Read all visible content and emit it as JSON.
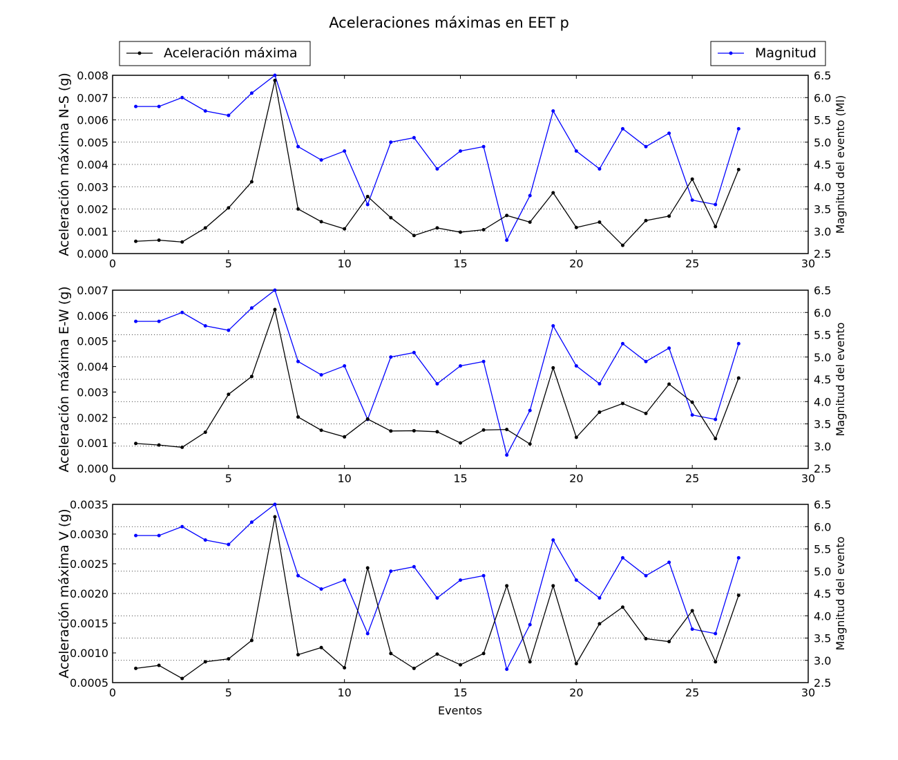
{
  "chart_data": {
    "type": "line",
    "title": "Aceleraciones máximas en EET p",
    "xlabel": "Eventos",
    "legend": {
      "left": {
        "label": "Aceleración máxima",
        "color": "#000000",
        "placement": "top-left"
      },
      "right": {
        "label": "Magnitud",
        "color": "#0000ff",
        "placement": "top-right"
      }
    },
    "x": [
      1,
      2,
      3,
      4,
      5,
      6,
      7,
      8,
      9,
      10,
      11,
      12,
      13,
      14,
      15,
      16,
      17,
      18,
      19,
      20,
      21,
      22,
      23,
      24,
      25,
      26,
      27
    ],
    "xlim": [
      0,
      30
    ],
    "xticks": [
      0,
      5,
      10,
      15,
      20,
      25,
      30
    ],
    "magnitude": [
      5.8,
      5.8,
      6.0,
      5.7,
      5.6,
      6.1,
      6.5,
      4.9,
      4.6,
      4.8,
      3.6,
      5.0,
      5.1,
      4.4,
      4.8,
      4.9,
      2.8,
      3.8,
      5.7,
      4.8,
      4.4,
      5.3,
      4.9,
      5.2,
      3.7,
      3.6,
      5.3
    ],
    "panels": [
      {
        "ylabel_left": "Aceleración máxima N-S (g)",
        "ylabel_right": "Magnitud del evento (Ml)",
        "ylim_left": [
          0,
          0.008
        ],
        "yticks_left": [
          "0.000",
          "0.001",
          "0.002",
          "0.003",
          "0.004",
          "0.005",
          "0.006",
          "0.007",
          "0.008"
        ],
        "ylim_right": [
          2.5,
          6.5
        ],
        "yticks_right": [
          "2.5",
          "3.0",
          "3.5",
          "4.0",
          "4.5",
          "5.0",
          "5.5",
          "6.0",
          "6.5"
        ],
        "series": [
          {
            "name": "Aceleración máxima",
            "color": "#000000",
            "values": [
              0.00055,
              0.0006,
              0.00052,
              0.00115,
              0.00205,
              0.00322,
              0.00777,
              0.002,
              0.00143,
              0.00111,
              0.00256,
              0.00161,
              0.00081,
              0.00115,
              0.00096,
              0.00107,
              0.00171,
              0.00141,
              0.00273,
              0.00117,
              0.00141,
              0.00037,
              0.00148,
              0.00168,
              0.00334,
              0.00121,
              0.00377
            ]
          }
        ]
      },
      {
        "ylabel_left": "Aceleración máxima E-W (g)",
        "ylabel_right": "Magnitud del evento",
        "ylim_left": [
          0,
          0.007
        ],
        "yticks_left": [
          "0.000",
          "0.001",
          "0.002",
          "0.003",
          "0.004",
          "0.005",
          "0.006",
          "0.007"
        ],
        "ylim_right": [
          2.5,
          6.5
        ],
        "yticks_right": [
          "2.5",
          "3.0",
          "3.5",
          "4.0",
          "4.5",
          "5.0",
          "5.5",
          "6.0",
          "6.5"
        ],
        "series": [
          {
            "name": "Aceleración máxima",
            "color": "#000000",
            "values": [
              0.00098,
              0.00092,
              0.00083,
              0.00142,
              0.00291,
              0.00361,
              0.00624,
              0.00202,
              0.0015,
              0.00124,
              0.00194,
              0.00147,
              0.00148,
              0.00144,
              0.001,
              0.00151,
              0.00153,
              0.00096,
              0.00395,
              0.00122,
              0.00221,
              0.00255,
              0.00216,
              0.00331,
              0.0026,
              0.00117,
              0.00355
            ]
          }
        ]
      },
      {
        "ylabel_left": "Aceleración máxima V (g)",
        "ylabel_right": "Magnitud del evento",
        "ylim_left": [
          0.0005,
          0.0035
        ],
        "yticks_left": [
          "0.0005",
          "0.0010",
          "0.0015",
          "0.0020",
          "0.0025",
          "0.0030",
          "0.0035"
        ],
        "ylim_right": [
          2.5,
          6.5
        ],
        "yticks_right": [
          "2.5",
          "3.0",
          "3.5",
          "4.0",
          "4.5",
          "5.0",
          "5.5",
          "6.0",
          "6.5"
        ],
        "series": [
          {
            "name": "Aceleración máxima",
            "color": "#000000",
            "values": [
              0.00074,
              0.00079,
              0.00057,
              0.00085,
              0.0009,
              0.00121,
              0.00329,
              0.00097,
              0.00109,
              0.00075,
              0.00243,
              0.00099,
              0.00074,
              0.00098,
              0.0008,
              0.00099,
              0.00213,
              0.00085,
              0.00213,
              0.00082,
              0.00149,
              0.00177,
              0.00124,
              0.00119,
              0.00171,
              0.00085,
              0.00197
            ]
          }
        ]
      }
    ]
  }
}
